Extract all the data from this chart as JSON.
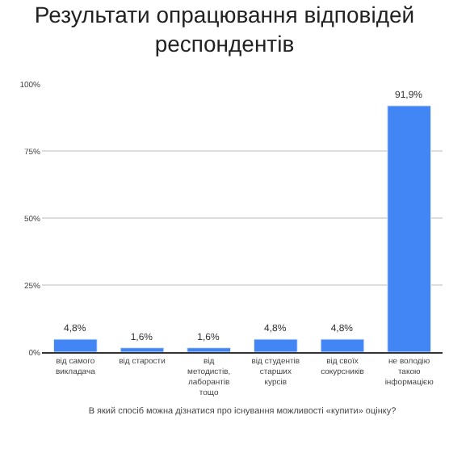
{
  "chart_data": {
    "type": "bar",
    "title": "Результати опрацювання відповідей респондентів",
    "xlabel": "В який спосіб можна дізнатися про існування можливості «купити» оцінку?",
    "categories": [
      "від самого викладача",
      "від старости",
      "від методистів, лаборантів тощо",
      "від студентів старших курсів",
      "від своїх сокурсників",
      "не володію такою інформацією"
    ],
    "values": [
      4.8,
      1.6,
      1.6,
      4.8,
      4.8,
      91.9
    ],
    "value_labels": [
      "4,8%",
      "1,6%",
      "1,6%",
      "4,8%",
      "4,8%",
      "91,9%"
    ],
    "color": "#4285f4",
    "ylim": [
      0,
      100
    ],
    "yticks": [
      {
        "value": 0,
        "label": "0%"
      },
      {
        "value": 25,
        "label": "25%"
      },
      {
        "value": 50,
        "label": "50%"
      },
      {
        "value": 75,
        "label": "75%"
      },
      {
        "value": 100,
        "label": "100%"
      }
    ],
    "grid": "y"
  }
}
